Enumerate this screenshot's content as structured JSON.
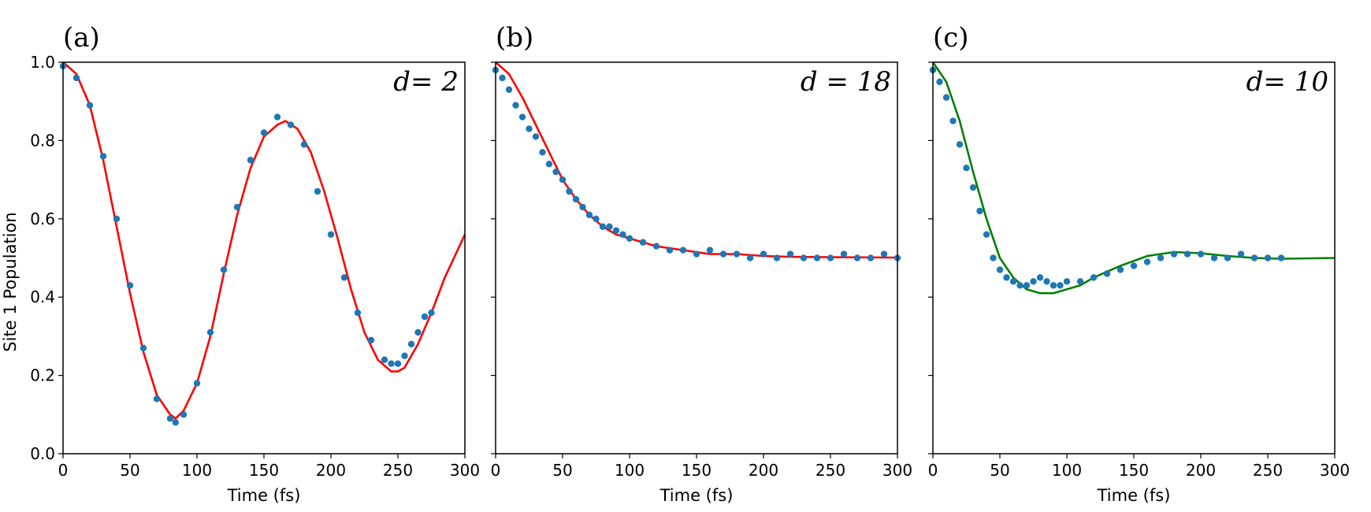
{
  "figure": {
    "ylabel": "Site 1 Population"
  },
  "chart_data": [
    {
      "type": "scatter",
      "panel_label": "(a)",
      "annotation": "d= 2",
      "xlabel": "Time (fs)",
      "ylabel": "Site 1 Population",
      "xlim": [
        0,
        300
      ],
      "ylim": [
        0,
        1
      ],
      "xticks": [
        "0",
        "50",
        "100",
        "150",
        "200",
        "250",
        "300"
      ],
      "yticks": [
        "0.0",
        "0.2",
        "0.4",
        "0.6",
        "0.8",
        "1.0"
      ],
      "grid": false,
      "colors": {
        "points": "#1f77b4",
        "fit": "#ff0000"
      },
      "series": [
        {
          "kind": "points",
          "x": [
            0,
            10,
            20,
            30,
            40,
            50,
            60,
            70,
            80,
            84,
            90,
            100,
            110,
            120,
            130,
            140,
            150,
            160,
            170,
            180,
            190,
            200,
            210,
            220,
            230,
            240,
            245,
            250,
            255,
            260,
            265,
            270,
            275
          ],
          "y": [
            0.99,
            0.96,
            0.89,
            0.76,
            0.6,
            0.43,
            0.27,
            0.14,
            0.09,
            0.08,
            0.1,
            0.18,
            0.31,
            0.47,
            0.63,
            0.75,
            0.82,
            0.86,
            0.84,
            0.79,
            0.67,
            0.56,
            0.45,
            0.36,
            0.29,
            0.24,
            0.23,
            0.23,
            0.25,
            0.28,
            0.31,
            0.35,
            0.36
          ]
        },
        {
          "kind": "line",
          "x": [
            0,
            10,
            20,
            30,
            40,
            50,
            60,
            70,
            80,
            84,
            90,
            100,
            110,
            120,
            130,
            140,
            150,
            160,
            166,
            175,
            185,
            195,
            205,
            215,
            225,
            235,
            245,
            250,
            255,
            265,
            275,
            285,
            300
          ],
          "y": [
            1.0,
            0.97,
            0.89,
            0.75,
            0.58,
            0.41,
            0.26,
            0.15,
            0.1,
            0.09,
            0.11,
            0.18,
            0.3,
            0.46,
            0.61,
            0.73,
            0.81,
            0.84,
            0.85,
            0.83,
            0.77,
            0.67,
            0.55,
            0.42,
            0.31,
            0.24,
            0.21,
            0.21,
            0.22,
            0.28,
            0.36,
            0.45,
            0.56
          ]
        }
      ]
    },
    {
      "type": "scatter",
      "panel_label": "(b)",
      "annotation": "d = 18",
      "xlabel": "Time (fs)",
      "xlim": [
        0,
        300
      ],
      "ylim": [
        0,
        1
      ],
      "xticks": [
        "0",
        "50",
        "100",
        "150",
        "200",
        "250",
        "300"
      ],
      "yticks": [
        "0.0",
        "0.2",
        "0.4",
        "0.6",
        "0.8",
        "1.0"
      ],
      "grid": false,
      "colors": {
        "points": "#1f77b4",
        "fit": "#ff0000"
      },
      "series": [
        {
          "kind": "points",
          "x": [
            0,
            5,
            10,
            15,
            20,
            25,
            30,
            35,
            40,
            45,
            50,
            55,
            60,
            65,
            70,
            75,
            80,
            85,
            90,
            95,
            100,
            110,
            120,
            130,
            140,
            150,
            160,
            170,
            180,
            190,
            200,
            210,
            220,
            230,
            240,
            250,
            260,
            270,
            280,
            290,
            300
          ],
          "y": [
            0.98,
            0.96,
            0.93,
            0.89,
            0.86,
            0.83,
            0.81,
            0.77,
            0.74,
            0.72,
            0.7,
            0.67,
            0.65,
            0.63,
            0.61,
            0.6,
            0.58,
            0.58,
            0.57,
            0.56,
            0.55,
            0.54,
            0.53,
            0.52,
            0.52,
            0.51,
            0.52,
            0.51,
            0.51,
            0.5,
            0.51,
            0.5,
            0.51,
            0.5,
            0.5,
            0.5,
            0.51,
            0.5,
            0.5,
            0.51,
            0.5
          ]
        },
        {
          "kind": "line",
          "x": [
            0,
            10,
            20,
            30,
            40,
            50,
            60,
            70,
            80,
            90,
            100,
            120,
            140,
            160,
            180,
            200,
            220,
            250,
            300
          ],
          "y": [
            1.0,
            0.97,
            0.91,
            0.84,
            0.77,
            0.7,
            0.65,
            0.61,
            0.58,
            0.56,
            0.55,
            0.53,
            0.52,
            0.51,
            0.51,
            0.505,
            0.503,
            0.502,
            0.501
          ]
        }
      ]
    },
    {
      "type": "scatter",
      "panel_label": "(c)",
      "annotation": "d= 10",
      "xlabel": "Time (fs)",
      "xlim": [
        0,
        300
      ],
      "ylim": [
        0,
        1
      ],
      "xticks": [
        "0",
        "50",
        "100",
        "150",
        "200",
        "250",
        "300"
      ],
      "yticks": [
        "0.0",
        "0.2",
        "0.4",
        "0.6",
        "0.8",
        "1.0"
      ],
      "grid": false,
      "colors": {
        "points": "#1f77b4",
        "fit": "#008000"
      },
      "series": [
        {
          "kind": "points",
          "x": [
            0,
            5,
            10,
            15,
            20,
            25,
            30,
            35,
            40,
            45,
            50,
            55,
            60,
            65,
            70,
            75,
            80,
            85,
            90,
            95,
            100,
            110,
            120,
            130,
            140,
            150,
            160,
            170,
            180,
            190,
            200,
            210,
            220,
            230,
            240,
            250,
            260
          ],
          "y": [
            0.98,
            0.95,
            0.91,
            0.85,
            0.79,
            0.73,
            0.68,
            0.62,
            0.56,
            0.5,
            0.47,
            0.45,
            0.44,
            0.43,
            0.43,
            0.44,
            0.45,
            0.44,
            0.43,
            0.43,
            0.44,
            0.44,
            0.45,
            0.46,
            0.47,
            0.48,
            0.49,
            0.5,
            0.51,
            0.51,
            0.51,
            0.5,
            0.5,
            0.51,
            0.5,
            0.5,
            0.5
          ]
        },
        {
          "kind": "line",
          "x": [
            0,
            10,
            20,
            30,
            40,
            50,
            60,
            70,
            80,
            90,
            100,
            110,
            120,
            140,
            160,
            180,
            200,
            220,
            240,
            260,
            280,
            300
          ],
          "y": [
            1.0,
            0.95,
            0.85,
            0.72,
            0.6,
            0.5,
            0.45,
            0.42,
            0.41,
            0.41,
            0.42,
            0.43,
            0.45,
            0.48,
            0.505,
            0.515,
            0.512,
            0.505,
            0.5,
            0.498,
            0.499,
            0.5
          ]
        }
      ]
    }
  ]
}
